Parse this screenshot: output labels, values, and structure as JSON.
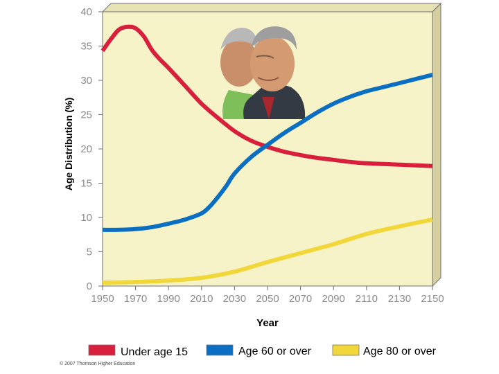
{
  "chart_data": {
    "type": "line",
    "ylabel": "Age Distribution (%)",
    "xlabel": "Year",
    "xlim": [
      1950,
      2150
    ],
    "ylim": [
      0,
      40
    ],
    "x_ticks": [
      "1950",
      "1970",
      "1990",
      "2010",
      "2030",
      "2050",
      "2070",
      "2090",
      "2110",
      "2130",
      "2150"
    ],
    "y_ticks": [
      "0",
      "5",
      "10",
      "15",
      "20",
      "25",
      "30",
      "35",
      "40"
    ],
    "grid": false,
    "legend_position": "bottom",
    "series": [
      {
        "name": "Under age 15",
        "color": "#d81f3c",
        "x": [
          1950,
          1955,
          1960,
          1965,
          1970,
          1975,
          1980,
          1985,
          1990,
          2000,
          2010,
          2020,
          2030,
          2040,
          2050,
          2060,
          2070,
          2080,
          2090,
          2100,
          2110,
          2120,
          2130,
          2140,
          2150
        ],
        "y": [
          34.3,
          36.0,
          37.4,
          37.8,
          37.6,
          36.4,
          34.4,
          33.0,
          31.8,
          29.2,
          26.6,
          24.5,
          22.6,
          21.2,
          20.3,
          19.6,
          19.1,
          18.7,
          18.4,
          18.1,
          17.9,
          17.8,
          17.7,
          17.6,
          17.5
        ]
      },
      {
        "name": "Age 60 or over",
        "color": "#0a6fc2",
        "x": [
          1950,
          1960,
          1970,
          1980,
          1990,
          2000,
          2010,
          2015,
          2020,
          2025,
          2030,
          2040,
          2050,
          2060,
          2070,
          2080,
          2090,
          2100,
          2110,
          2120,
          2130,
          2140,
          2150
        ],
        "y": [
          8.2,
          8.2,
          8.3,
          8.6,
          9.1,
          9.7,
          10.6,
          11.6,
          13.0,
          14.6,
          16.4,
          18.8,
          20.6,
          22.3,
          23.8,
          25.3,
          26.6,
          27.6,
          28.4,
          29.0,
          29.6,
          30.2,
          30.8
        ]
      },
      {
        "name": "Age 80 or over",
        "color": "#f2d73a",
        "x": [
          1950,
          1970,
          1990,
          2010,
          2030,
          2050,
          2070,
          2090,
          2110,
          2130,
          2150
        ],
        "y": [
          0.5,
          0.6,
          0.8,
          1.2,
          2.1,
          3.5,
          4.8,
          6.1,
          7.6,
          8.7,
          9.7
        ]
      }
    ]
  },
  "credit": "© 2007 Thomson Higher Education",
  "image": {
    "description": "elderly-couple-illustration"
  }
}
